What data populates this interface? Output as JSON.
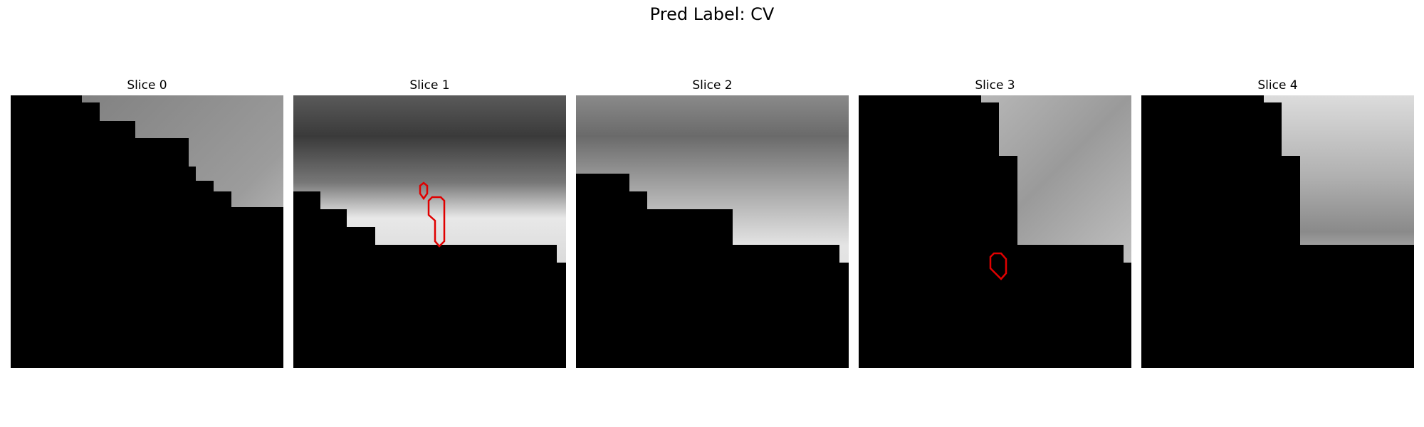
{
  "figure": {
    "title": "Pred Label: CV",
    "panels": [
      {
        "title": "Slice 0"
      },
      {
        "title": "Slice 1"
      },
      {
        "title": "Slice 2"
      },
      {
        "title": "Slice 3"
      },
      {
        "title": "Slice 4"
      }
    ],
    "contour_color": "#e00000",
    "mask_color": "#000000"
  }
}
